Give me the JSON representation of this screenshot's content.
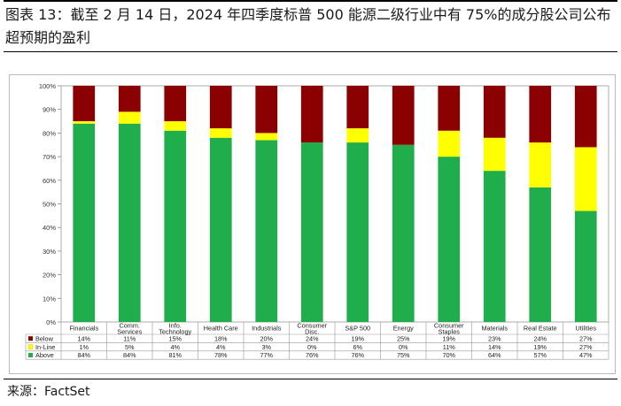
{
  "header": {
    "title": "图表 13：截至 2 月 14 日，2024 年四季度标普 500 能源二级行业中有 75%的成分股公司公布超预期的盈利"
  },
  "footer": {
    "source": "来源：FactSet"
  },
  "chart_data": {
    "type": "bar",
    "stacked": true,
    "title": "",
    "xlabel": "",
    "ylabel": "",
    "ylim": [
      0,
      100
    ],
    "yticks": [
      "0%",
      "10%",
      "20%",
      "30%",
      "40%",
      "50%",
      "60%",
      "70%",
      "80%",
      "90%",
      "100%"
    ],
    "categories": [
      [
        "Financials"
      ],
      [
        "Comm.",
        "Services"
      ],
      [
        "Info.",
        "Technology"
      ],
      [
        "Health Care"
      ],
      [
        "Industrials"
      ],
      [
        "Consumer",
        "Disc."
      ],
      [
        "S&P 500"
      ],
      [
        "Energy"
      ],
      [
        "Consumer",
        "Staples"
      ],
      [
        "Materials"
      ],
      [
        "Real Estate"
      ],
      [
        "Utilities"
      ]
    ],
    "series": [
      {
        "name": "Above",
        "color": "#1fae4b",
        "values": [
          84,
          84,
          81,
          78,
          77,
          76,
          76,
          75,
          70,
          64,
          57,
          47
        ],
        "labels": [
          "84%",
          "84%",
          "81%",
          "78%",
          "77%",
          "76%",
          "76%",
          "75%",
          "70%",
          "64%",
          "57%",
          "47%"
        ]
      },
      {
        "name": "In-Line",
        "color": "#ffff00",
        "values": [
          1,
          5,
          4,
          4,
          3,
          0,
          6,
          0,
          11,
          14,
          19,
          27
        ],
        "labels": [
          "1%",
          "5%",
          "4%",
          "4%",
          "3%",
          "0%",
          "6%",
          "0%",
          "11%",
          "14%",
          "19%",
          "27%"
        ]
      },
      {
        "name": "Below",
        "color": "#8b0000",
        "values": [
          14,
          11,
          15,
          18,
          20,
          24,
          19,
          25,
          19,
          23,
          24,
          27
        ],
        "labels": [
          "14%",
          "11%",
          "15%",
          "18%",
          "20%",
          "24%",
          "19%",
          "25%",
          "19%",
          "23%",
          "24%",
          "27%"
        ]
      }
    ],
    "table_order": [
      "Below",
      "In-Line",
      "Above"
    ],
    "legend": "data-table"
  }
}
